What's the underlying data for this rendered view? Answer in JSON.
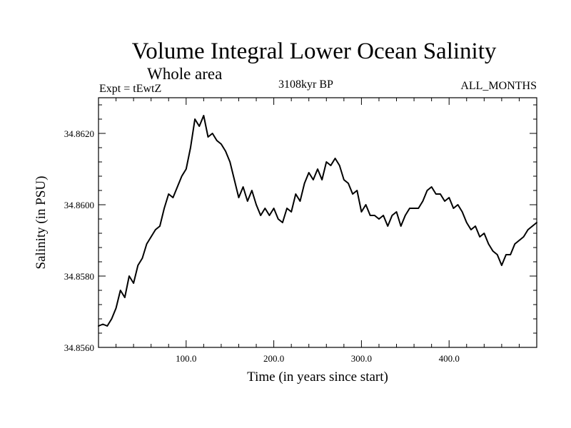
{
  "chart_data": {
    "type": "line",
    "title": "Volume Integral Lower Ocean Salinity",
    "subtitle": "Whole area",
    "experiment": "Expt = tEwtZ",
    "period": "3108kyr BP",
    "months": "ALL_MONTHS",
    "xlabel": "Time (in years since start)",
    "ylabel": "Salinity (in PSU)",
    "xlim": [
      0,
      500
    ],
    "ylim": [
      34.856,
      34.863
    ],
    "x_ticks": [
      {
        "value": 100,
        "label": "100.0"
      },
      {
        "value": 200,
        "label": "200.0"
      },
      {
        "value": 300,
        "label": "300.0"
      },
      {
        "value": 400,
        "label": "400.0"
      }
    ],
    "y_ticks": [
      {
        "value": 34.856,
        "label": "34.8560"
      },
      {
        "value": 34.858,
        "label": "34.8580"
      },
      {
        "value": 34.86,
        "label": "34.8600"
      },
      {
        "value": 34.862,
        "label": "34.8620"
      }
    ],
    "series": [
      {
        "name": "Salinity",
        "color": "#000000",
        "x": [
          0,
          5,
          10,
          15,
          20,
          25,
          30,
          35,
          40,
          45,
          50,
          55,
          60,
          65,
          70,
          75,
          80,
          85,
          90,
          95,
          100,
          105,
          110,
          115,
          120,
          125,
          130,
          135,
          140,
          145,
          150,
          155,
          160,
          165,
          170,
          175,
          180,
          185,
          190,
          195,
          200,
          205,
          210,
          215,
          220,
          225,
          230,
          235,
          240,
          245,
          250,
          255,
          260,
          265,
          270,
          275,
          280,
          285,
          290,
          295,
          300,
          305,
          310,
          315,
          320,
          325,
          330,
          335,
          340,
          345,
          350,
          355,
          360,
          365,
          370,
          375,
          380,
          385,
          390,
          395,
          400,
          405,
          410,
          415,
          420,
          425,
          430,
          435,
          440,
          445,
          450,
          455,
          460,
          465,
          470,
          475,
          480,
          485,
          490,
          495,
          500
        ],
        "values": [
          34.8566,
          34.85665,
          34.8566,
          34.8568,
          34.8571,
          34.8576,
          34.8574,
          34.858,
          34.8578,
          34.8583,
          34.8585,
          34.8589,
          34.8591,
          34.8593,
          34.8594,
          34.8599,
          34.8603,
          34.8602,
          34.8605,
          34.8608,
          34.861,
          34.8616,
          34.8624,
          34.8622,
          34.8625,
          34.8619,
          34.862,
          34.8618,
          34.8617,
          34.8615,
          34.8612,
          34.8607,
          34.8602,
          34.8605,
          34.8601,
          34.8604,
          34.86,
          34.8597,
          34.8599,
          34.8597,
          34.8599,
          34.8596,
          34.8595,
          34.8599,
          34.8598,
          34.8603,
          34.8601,
          34.8606,
          34.8609,
          34.8607,
          34.861,
          34.8607,
          34.8612,
          34.8611,
          34.8613,
          34.8611,
          34.8607,
          34.8606,
          34.8603,
          34.8604,
          34.8598,
          34.86,
          34.8597,
          34.8597,
          34.8596,
          34.8597,
          34.8594,
          34.8597,
          34.8598,
          34.8594,
          34.8597,
          34.8599,
          34.8599,
          34.8599,
          34.8601,
          34.8604,
          34.8605,
          34.8603,
          34.8603,
          34.8601,
          34.8602,
          34.8599,
          34.86,
          34.8598,
          34.8595,
          34.8593,
          34.8594,
          34.8591,
          34.8592,
          34.8589,
          34.8587,
          34.8586,
          34.8583,
          34.8586,
          34.8586,
          34.8589,
          34.859,
          34.8591,
          34.8593,
          34.8594,
          34.8595
        ]
      }
    ]
  }
}
